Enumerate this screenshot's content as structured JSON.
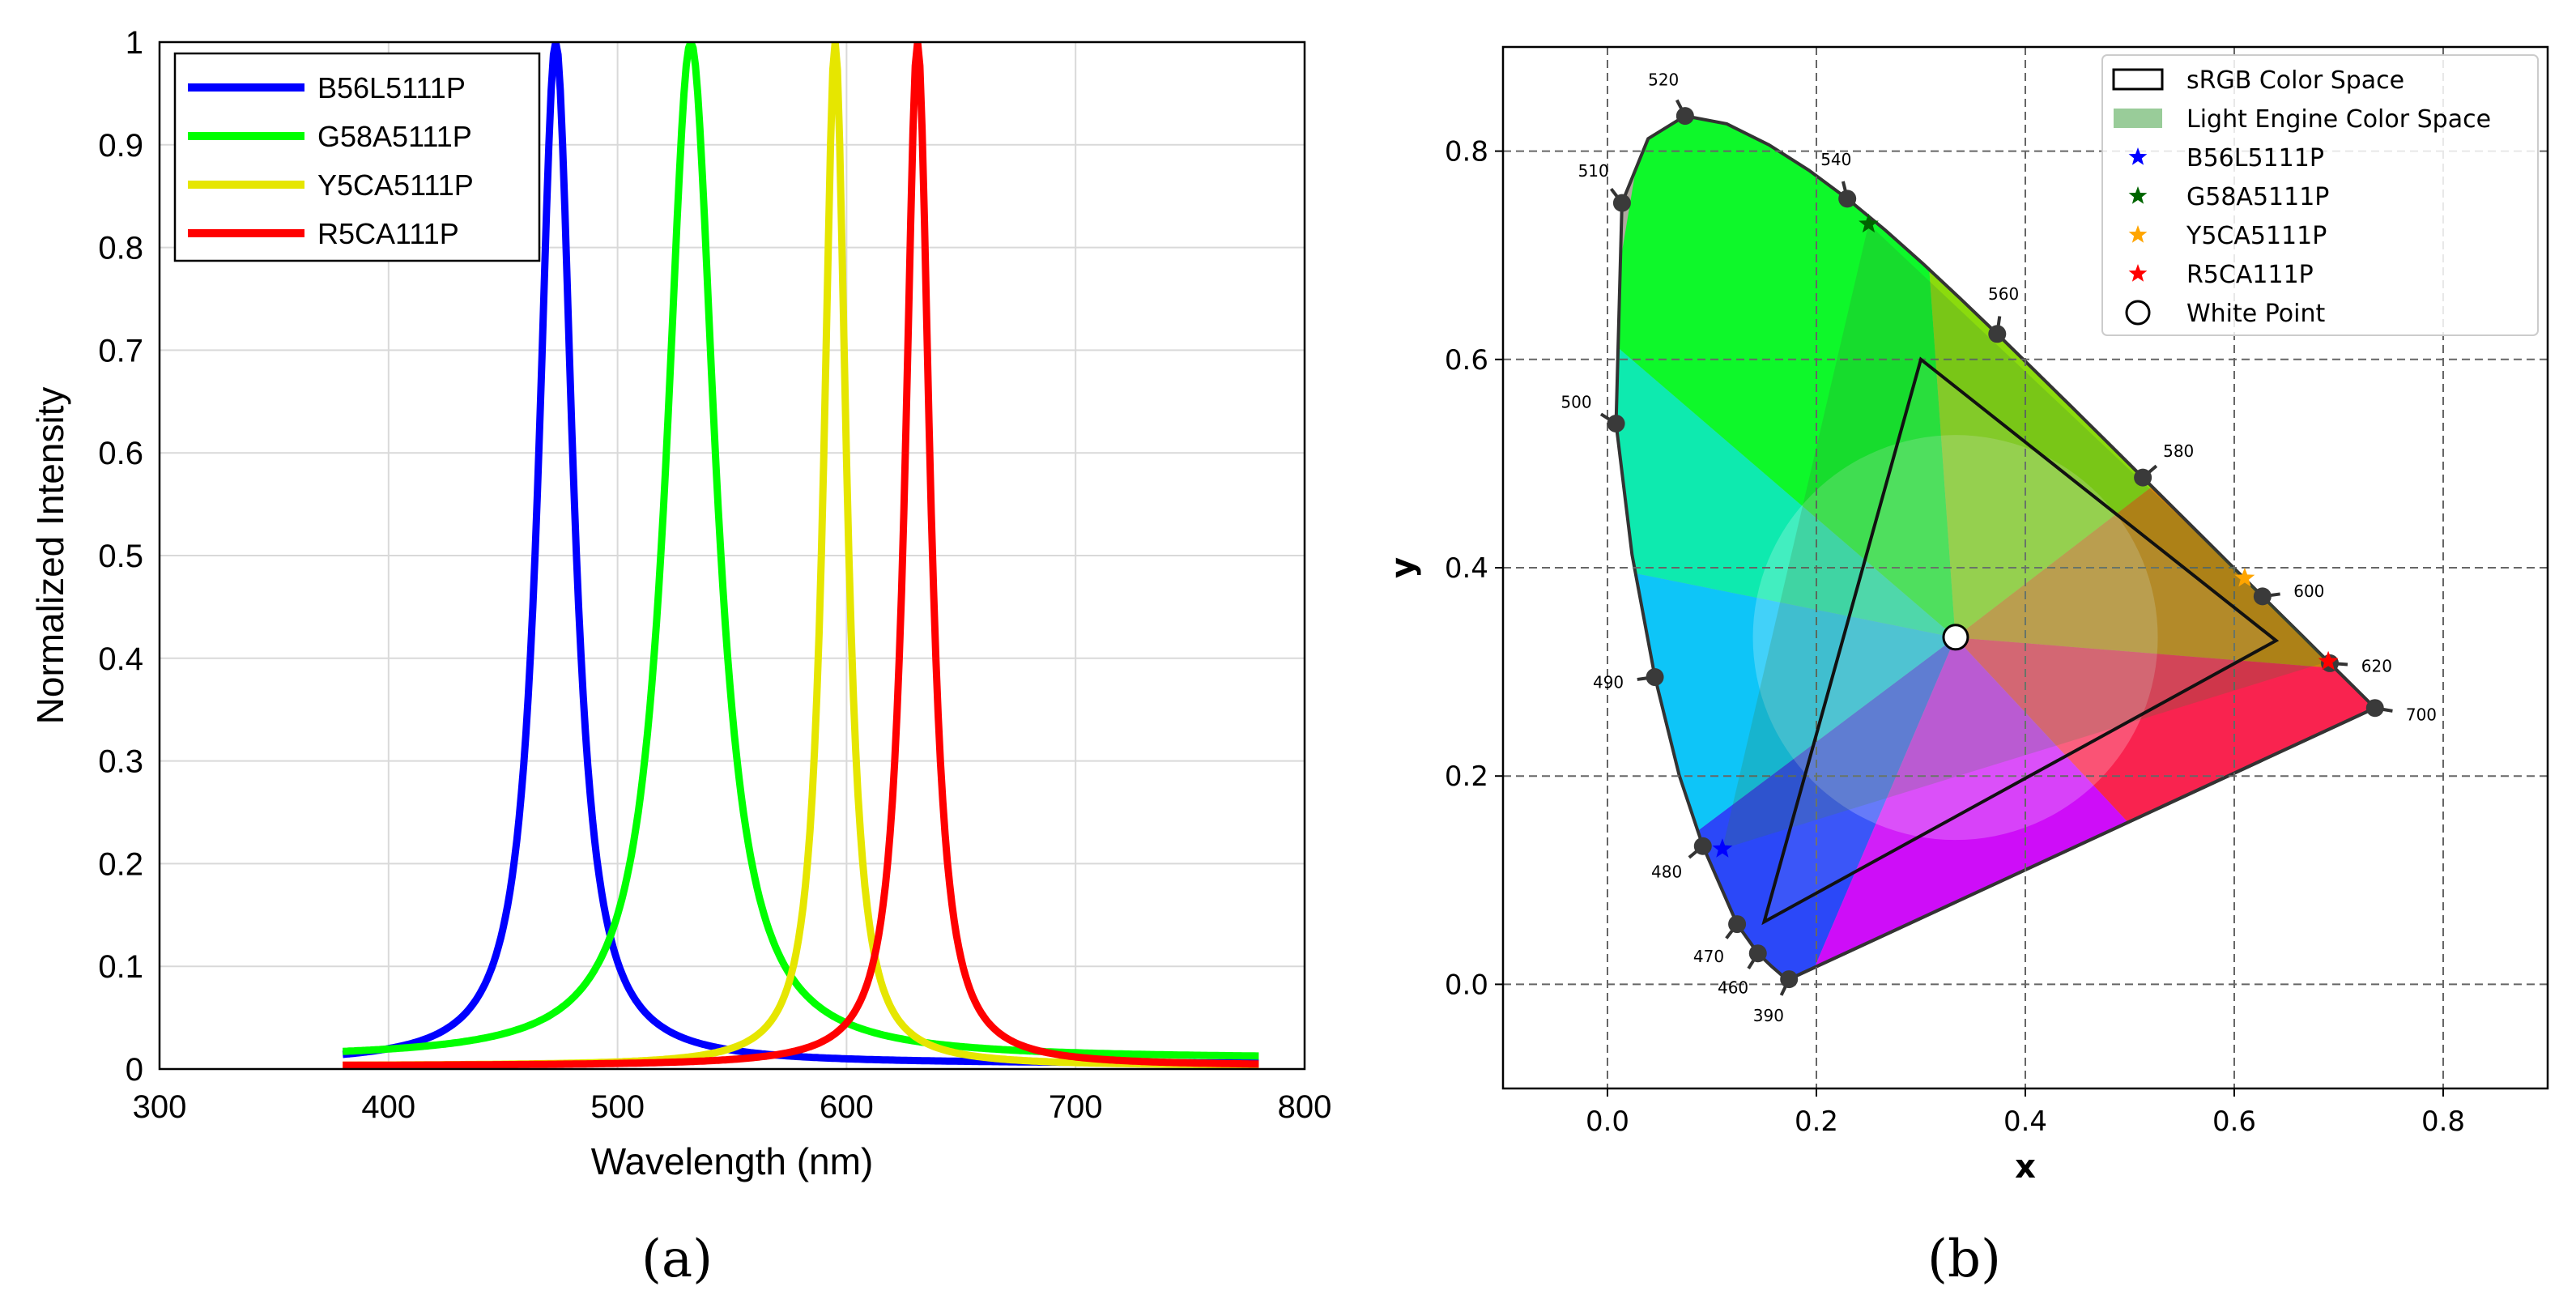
{
  "figure": {
    "label_a": "(a)",
    "label_b": "(b)"
  },
  "chart_data": [
    {
      "type": "line",
      "panel": "a",
      "title": "",
      "xlabel": "Wavelength (nm)",
      "ylabel": "Normalized Intensity",
      "xlim": [
        300,
        800
      ],
      "ylim": [
        0,
        1
      ],
      "xticks": [
        "300",
        "400",
        "500",
        "600",
        "700",
        "800"
      ],
      "yticks": [
        "0",
        "0.1",
        "0.2",
        "0.3",
        "0.4",
        "0.5",
        "0.6",
        "0.7",
        "0.8",
        "0.9",
        "1"
      ],
      "x_range": [
        380,
        780
      ],
      "grid": true,
      "legend_position": "top-left",
      "series": [
        {
          "name": "B56L5111P",
          "color": "#0000ff",
          "peak": 473,
          "hwhm": 9,
          "base": 0.005
        },
        {
          "name": "G58A5111P",
          "color": "#00ff00",
          "peak": 532,
          "hwhm": 13,
          "base": 0.01
        },
        {
          "name": "Y5CA5111P",
          "color": "#e6e600",
          "peak": 595,
          "hwhm": 6,
          "base": 0.003
        },
        {
          "name": "R5CA111P",
          "color": "#ff0000",
          "peak": 631,
          "hwhm": 6.5,
          "base": 0.003
        }
      ]
    },
    {
      "type": "scatter",
      "panel": "b",
      "title": "",
      "xlabel": "x",
      "ylabel": "y",
      "xlim": [
        -0.1,
        0.9
      ],
      "ylim": [
        -0.1,
        0.9
      ],
      "xticks": [
        "0.0",
        "0.2",
        "0.4",
        "0.6",
        "0.8"
      ],
      "yticks": [
        "0.0",
        "0.2",
        "0.4",
        "0.6",
        "0.8"
      ],
      "grid": true,
      "legend_position": "top-right",
      "spectral_locus": [
        [
          0.1741,
          0.005
        ],
        [
          0.1738,
          0.0049
        ],
        [
          0.1733,
          0.0048
        ],
        [
          0.1726,
          0.0048
        ],
        [
          0.1714,
          0.0051
        ],
        [
          0.1689,
          0.0069
        ],
        [
          0.1644,
          0.0109
        ],
        [
          0.1566,
          0.0177
        ],
        [
          0.144,
          0.0297
        ],
        [
          0.1241,
          0.0578
        ],
        [
          0.0913,
          0.1327
        ],
        [
          0.0687,
          0.2007
        ],
        [
          0.0454,
          0.295
        ],
        [
          0.0235,
          0.4127
        ],
        [
          0.0082,
          0.5384
        ],
        [
          0.0139,
          0.7502
        ],
        [
          0.0389,
          0.812
        ],
        [
          0.0743,
          0.8338
        ],
        [
          0.1142,
          0.8262
        ],
        [
          0.1547,
          0.8059
        ],
        [
          0.1929,
          0.7816
        ],
        [
          0.2296,
          0.7543
        ],
        [
          0.2658,
          0.7243
        ],
        [
          0.3016,
          0.6923
        ],
        [
          0.3373,
          0.6589
        ],
        [
          0.3731,
          0.6245
        ],
        [
          0.4087,
          0.5896
        ],
        [
          0.4441,
          0.5547
        ],
        [
          0.4788,
          0.5202
        ],
        [
          0.5125,
          0.4866
        ],
        [
          0.5448,
          0.4544
        ],
        [
          0.5752,
          0.4242
        ],
        [
          0.6029,
          0.3965
        ],
        [
          0.627,
          0.3725
        ],
        [
          0.6482,
          0.3514
        ],
        [
          0.6658,
          0.334
        ],
        [
          0.6915,
          0.3083
        ],
        [
          0.714,
          0.2859
        ],
        [
          0.7347,
          0.2653
        ]
      ],
      "wavelength_markers": [
        {
          "label": "390",
          "x": 0.1738,
          "y": 0.0049
        },
        {
          "label": "460",
          "x": 0.144,
          "y": 0.0297
        },
        {
          "label": "470",
          "x": 0.1241,
          "y": 0.0578
        },
        {
          "label": "480",
          "x": 0.0913,
          "y": 0.1327
        },
        {
          "label": "490",
          "x": 0.0454,
          "y": 0.295
        },
        {
          "label": "500",
          "x": 0.0082,
          "y": 0.5384
        },
        {
          "label": "510",
          "x": 0.0139,
          "y": 0.7502
        },
        {
          "label": "520",
          "x": 0.0743,
          "y": 0.8338
        },
        {
          "label": "540",
          "x": 0.2296,
          "y": 0.7543
        },
        {
          "label": "560",
          "x": 0.3731,
          "y": 0.6245
        },
        {
          "label": "580",
          "x": 0.5125,
          "y": 0.4866
        },
        {
          "label": "600",
          "x": 0.627,
          "y": 0.3725
        },
        {
          "label": "620",
          "x": 0.6915,
          "y": 0.3083
        },
        {
          "label": "700",
          "x": 0.7347,
          "y": 0.2653
        }
      ],
      "srgb_triangle": [
        [
          0.64,
          0.33
        ],
        [
          0.3,
          0.6
        ],
        [
          0.15,
          0.06
        ]
      ],
      "light_engine_polygon": [
        [
          0.11,
          0.13
        ],
        [
          0.25,
          0.73
        ],
        [
          0.61,
          0.39
        ],
        [
          0.69,
          0.31
        ]
      ],
      "leds": [
        {
          "name": "B56L5111P",
          "x": 0.11,
          "y": 0.13,
          "color": "#0000ff"
        },
        {
          "name": "G58A5111P",
          "x": 0.25,
          "y": 0.73,
          "color": "#006400"
        },
        {
          "name": "Y5CA5111P",
          "x": 0.61,
          "y": 0.39,
          "color": "#ffa500"
        },
        {
          "name": "R5CA111P",
          "x": 0.69,
          "y": 0.31,
          "color": "#ff0000"
        }
      ],
      "white_point": {
        "name": "White Point",
        "x": 0.3333,
        "y": 0.3333
      },
      "legend": [
        {
          "label": "sRGB Color Space",
          "kind": "rect-outline"
        },
        {
          "label": "Light Engine Color Space",
          "kind": "rect-fill",
          "color": "#99cc99"
        },
        {
          "label": "B56L5111P",
          "kind": "star",
          "color": "#0000ff"
        },
        {
          "label": "G58A5111P",
          "kind": "star",
          "color": "#006400"
        },
        {
          "label": "Y5CA5111P",
          "kind": "star",
          "color": "#ffa500"
        },
        {
          "label": "R5CA111P",
          "kind": "star",
          "color": "#ff0000"
        },
        {
          "label": "White Point",
          "kind": "circle"
        }
      ]
    }
  ]
}
